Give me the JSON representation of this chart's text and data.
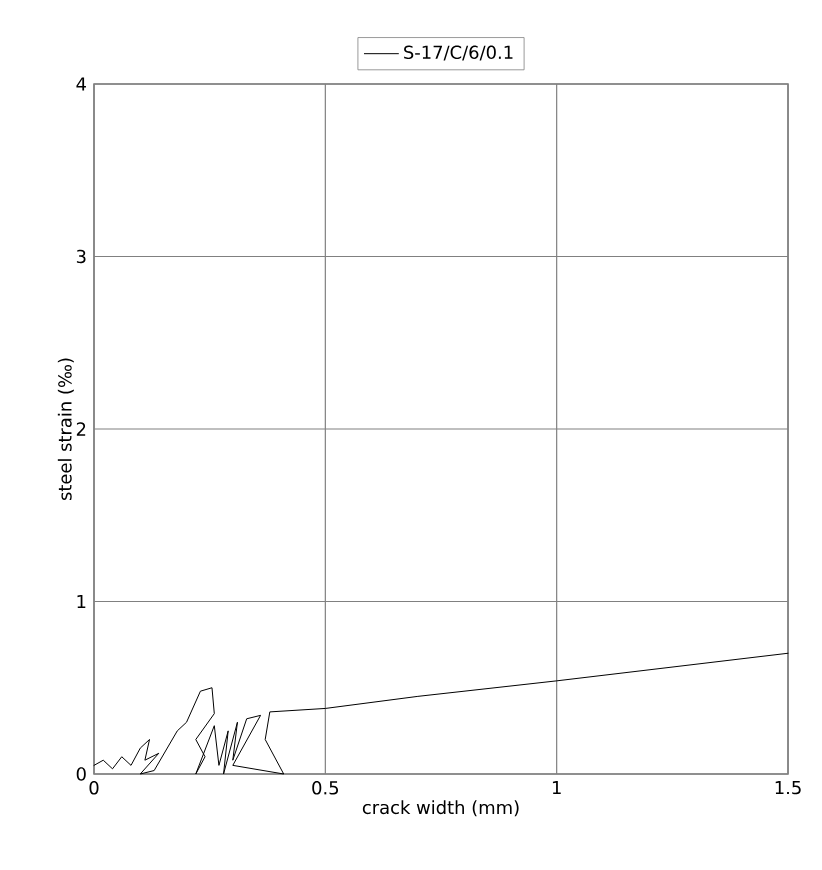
{
  "chart_data": {
    "type": "line",
    "xlabel": "crack width (mm)",
    "ylabel": "steel strain (‰)",
    "xlim": [
      0,
      1.5
    ],
    "ylim": [
      0,
      4
    ],
    "xticks": [
      0,
      0.5,
      1,
      1.5
    ],
    "yticks": [
      0,
      1,
      2,
      3,
      4
    ],
    "grid": true,
    "legend": "top",
    "marker": "none",
    "line_style": "solid",
    "series": [
      {
        "name": "S-17/C/6/0.1",
        "color": "#000000",
        "x": [
          0,
          0.02,
          0.04,
          0.06,
          0.08,
          0.1,
          0.12,
          0.11,
          0.14,
          0.1,
          0.13,
          0.18,
          0.2,
          0.23,
          0.255,
          0.26,
          0.22,
          0.24,
          0.22,
          0.26,
          0.27,
          0.29,
          0.28,
          0.31,
          0.3,
          0.33,
          0.36,
          0.3,
          0.41,
          0.37,
          0.38,
          0.5,
          0.7,
          1.0,
          1.5
        ],
        "values": [
          0.05,
          0.08,
          0.03,
          0.1,
          0.05,
          0.15,
          0.2,
          0.08,
          0.12,
          0.0,
          0.02,
          0.25,
          0.3,
          0.48,
          0.5,
          0.35,
          0.2,
          0.1,
          0.0,
          0.28,
          0.05,
          0.25,
          0.0,
          0.3,
          0.08,
          0.32,
          0.34,
          0.05,
          0.0,
          0.2,
          0.36,
          0.38,
          0.45,
          0.54,
          0.7
        ]
      }
    ]
  }
}
